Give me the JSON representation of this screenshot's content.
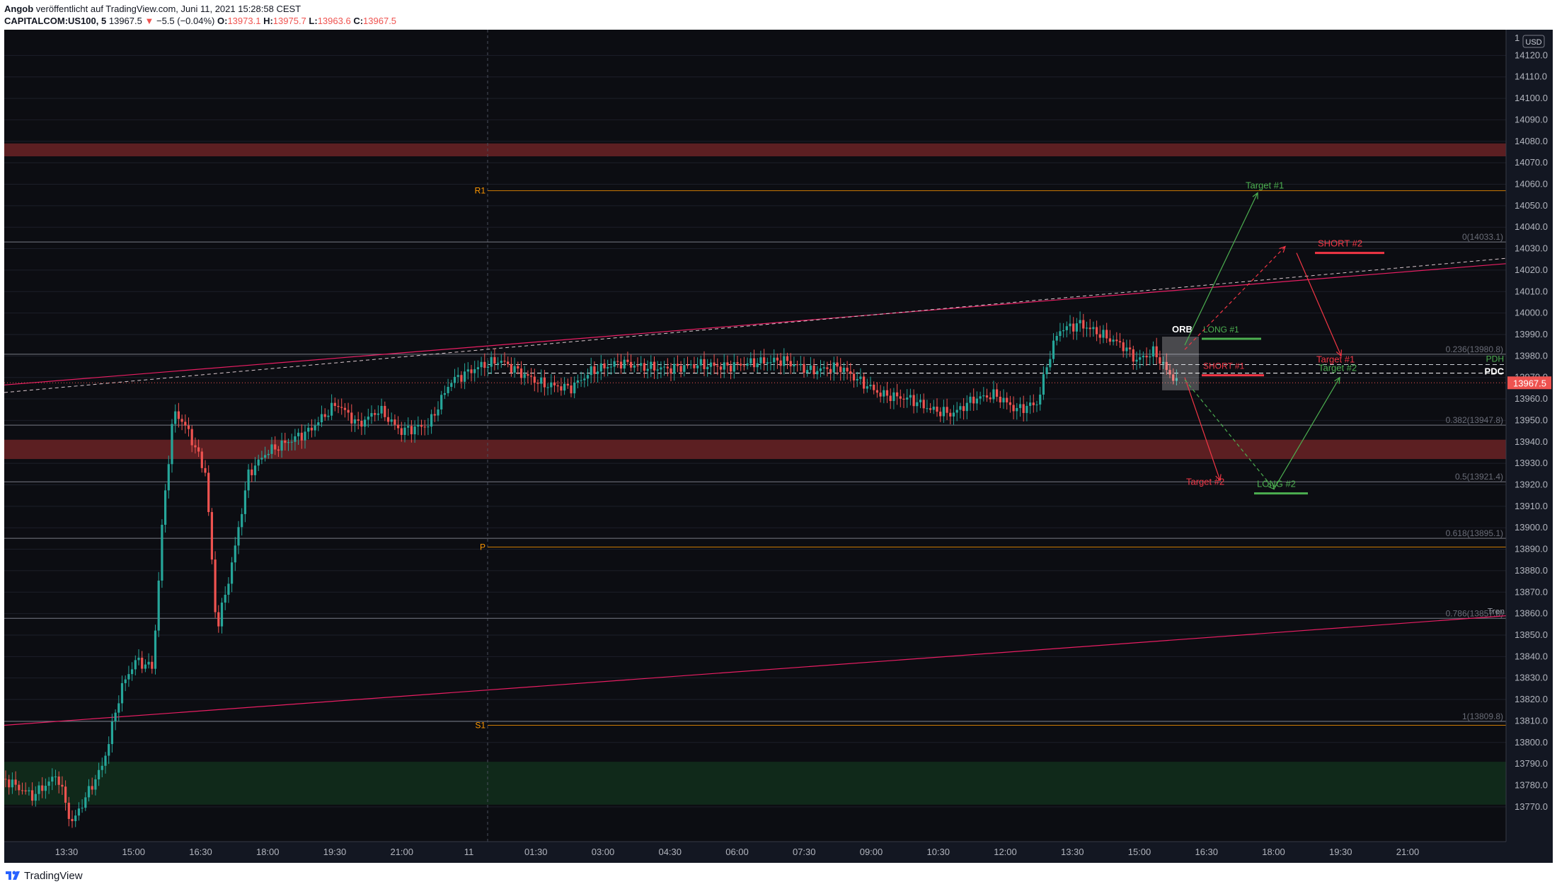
{
  "header": {
    "author": "Angob",
    "published": "veröffentlicht auf TradingView.com, Juni 11, 2021 15:28:58 CEST",
    "symbol": "CAPITALCOM:US100, 5",
    "price": "13967.5",
    "change_arrow": "▼",
    "change": "−5.5 (−0.04%)",
    "open_label": "O:",
    "open": "13973.1",
    "high_label": "H:",
    "high": "13975.7",
    "low_label": "L:",
    "low": "13963.6",
    "close_label": "C:",
    "close": "13967.5"
  },
  "currency_badge": "USD",
  "price_axis": {
    "min": 13765,
    "max": 14130,
    "ticks": [
      "14120.0",
      "14110.0",
      "14100.0",
      "14090.0",
      "14080.0",
      "14070.0",
      "14060.0",
      "14050.0",
      "14040.0",
      "14030.0",
      "14020.0",
      "14010.0",
      "14000.0",
      "13990.0",
      "13980.0",
      "13970.0",
      "13960.0",
      "13950.0",
      "13940.0",
      "13930.0",
      "13920.0",
      "13910.0",
      "13900.0",
      "13890.0",
      "13880.0",
      "13870.0",
      "13860.0",
      "13850.0",
      "13840.0",
      "13830.0",
      "13820.0",
      "13810.0",
      "13800.0",
      "13790.0",
      "13780.0",
      "13770.0"
    ],
    "top_partial": "1",
    "last_price_label": "13967.5",
    "last_price": 13967.5
  },
  "time_axis": {
    "labels": [
      "13:30",
      "15:00",
      "16:30",
      "18:00",
      "19:30",
      "21:00",
      "11",
      "01:30",
      "03:00",
      "04:30",
      "06:00",
      "07:30",
      "09:00",
      "10:30",
      "12:00",
      "13:30",
      "15:00",
      "16:30",
      "18:00",
      "19:30",
      "21:00"
    ]
  },
  "pivots": {
    "r1": "R1",
    "p": "P",
    "s1": "S1",
    "r1_value": 14057,
    "p_value": 13891,
    "s1_value": 13808
  },
  "fib_levels": [
    {
      "label": "0(14033.1)",
      "value": 14033.1
    },
    {
      "label": "0.236(13980.8)",
      "value": 13980.8
    },
    {
      "label": "0.382(13947.8)",
      "value": 13947.8
    },
    {
      "label": "0.5(13921.4)",
      "value": 13921.4
    },
    {
      "label": "0.618(13895.1)",
      "value": 13895.1
    },
    {
      "label": "0.786(13857.8)",
      "value": 13857.8
    },
    {
      "label": "1(13809.8)",
      "value": 13809.8
    }
  ],
  "levels": {
    "pdh_label": "PDH",
    "pdc_label": "PDC",
    "pdh": 13976,
    "pdc": 13972,
    "trend_label": "Tren"
  },
  "zones": [
    {
      "name": "resistance-zone",
      "top": 14079,
      "bottom": 14073,
      "color": "#5c1f22"
    },
    {
      "name": "mid-zone",
      "top": 13941,
      "bottom": 13932,
      "color": "#5c1f22"
    },
    {
      "name": "support-zone",
      "top": 13791,
      "bottom": 13771,
      "color": "#10291a"
    }
  ],
  "annotations": {
    "orb": "ORB",
    "long1": "LONG #1",
    "long2": "LONG #2",
    "short1": "SHORT #1",
    "short2": "SHORT #2",
    "target1_green": "Target #1",
    "target2_green": "Target #2",
    "target1_red": "Target #1",
    "target2_red": "Target #2"
  },
  "colors": {
    "bull": "#26a69a",
    "bear": "#ef5350",
    "trend": "#e91e63",
    "pivot": "#ff9800",
    "fib": "#787b86",
    "long": "#4caf50",
    "short": "#f23645"
  },
  "footer": {
    "brand": "TradingView"
  }
}
